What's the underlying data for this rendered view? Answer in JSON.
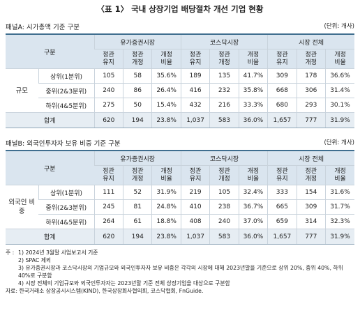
{
  "title": "〈표 1〉 국내 상장기업 배당절차 개선 기업 현황",
  "panels": [
    {
      "label": "패널A: 시가총액 기준 구분",
      "unit": "(단위: 개사)",
      "header": {
        "group": "구분",
        "markets": [
          "유가증권시장",
          "코스닥시장",
          "시장 전체"
        ],
        "columns": [
          [
            "정관",
            "유지"
          ],
          [
            "정관",
            "개정"
          ],
          [
            "개정",
            "비율"
          ]
        ]
      },
      "row_group": "규모",
      "rows": [
        {
          "label": "상위(1분위)",
          "cells": [
            "105",
            "58",
            "35.6%",
            "189",
            "135",
            "41.7%",
            "309",
            "178",
            "36.6%"
          ]
        },
        {
          "label": "중위(2&3분위)",
          "cells": [
            "240",
            "86",
            "26.4%",
            "416",
            "232",
            "35.8%",
            "668",
            "306",
            "31.4%"
          ]
        },
        {
          "label": "하위(4&5분위)",
          "cells": [
            "275",
            "50",
            "15.4%",
            "432",
            "216",
            "33.3%",
            "680",
            "293",
            "30.1%"
          ]
        }
      ],
      "total": {
        "label": "합계",
        "cells": [
          "620",
          "194",
          "23.8%",
          "1,037",
          "583",
          "36.0%",
          "1,657",
          "777",
          "31.9%"
        ]
      }
    },
    {
      "label": "패널B: 외국인투자자 보유 비중 기준 구분",
      "unit": "(단위: 개사)",
      "header": {
        "group": "구분",
        "markets": [
          "유가증권시장",
          "코스닥시장",
          "시장 전체"
        ],
        "columns": [
          [
            "정관",
            "유지"
          ],
          [
            "정관",
            "개정"
          ],
          [
            "개정",
            "비율"
          ]
        ]
      },
      "row_group": "외국인 비중",
      "rows": [
        {
          "label": "상위(1분위)",
          "cells": [
            "111",
            "52",
            "31.9%",
            "219",
            "105",
            "32.4%",
            "333",
            "154",
            "31.6%"
          ]
        },
        {
          "label": "중위(2&3분위)",
          "cells": [
            "245",
            "81",
            "24.8%",
            "410",
            "238",
            "36.7%",
            "665",
            "309",
            "31.7%"
          ]
        },
        {
          "label": "하위(4&5분위)",
          "cells": [
            "264",
            "61",
            "18.8%",
            "408",
            "240",
            "37.0%",
            "659",
            "314",
            "32.3%"
          ]
        }
      ],
      "total": {
        "label": "합계",
        "cells": [
          "620",
          "194",
          "23.8%",
          "1,037",
          "583",
          "36.0%",
          "1,657",
          "777",
          "31.9%"
        ]
      }
    }
  ],
  "notes": {
    "prefix": "주 :",
    "items": [
      "1) 2024년 3월말 사업보고서 기준",
      "2) SPAC 제외",
      "3) 유가증권시장과 코스닥시장의 기업규모와 외국인투자자 보유 비중은 각각의 시장에 대해 2023년말을 기준으로 상위 20%, 중위 40%, 하위 40%로 구분함",
      "4) 시장 전체의 기업규모와 외국인투자자는 2023년말 기준 전체 상장기업을 대상으로 구분함"
    ]
  },
  "source": "자료: 한국거래소 상장공시시스템(KIND), 한국상장회사협의회, 코스닥협회, FnGuide."
}
